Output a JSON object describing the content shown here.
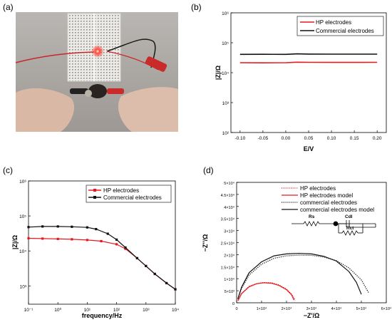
{
  "panel_labels": [
    "(a)",
    "(b)",
    "(c)",
    "(d)"
  ],
  "chart_data": [
    {
      "panel": "(b)",
      "type": "line",
      "title": "",
      "xlabel": "E/V",
      "ylabel": "|Z|/Ω",
      "x_ticks": [
        "-0.10",
        "-0.05",
        "0.00",
        "0.05",
        "0.10",
        "0.15",
        "0.20"
      ],
      "y_ticks": [
        "10²",
        "10³",
        "10⁴",
        "10⁵",
        "10⁶"
      ],
      "xlim": [
        -0.12,
        0.22
      ],
      "ylim": [
        100,
        1000000
      ],
      "y_scale": "log",
      "grid": false,
      "legend": "top-right",
      "series": [
        {
          "name": "HP electrodes",
          "color": "#e8191e",
          "x": [
            -0.1,
            -0.05,
            0.0,
            0.025,
            0.05,
            0.1,
            0.15,
            0.2
          ],
          "y": [
            21500,
            21300,
            21600,
            22400,
            22100,
            22000,
            22000,
            22200
          ]
        },
        {
          "name": "Commercial electrodes",
          "color": "#111111",
          "x": [
            -0.1,
            -0.05,
            0.0,
            0.025,
            0.05,
            0.1,
            0.15,
            0.2
          ],
          "y": [
            41000,
            41200,
            41000,
            42500,
            41800,
            41500,
            41600,
            41500
          ]
        }
      ]
    },
    {
      "panel": "(c)",
      "type": "line",
      "title": "",
      "xlabel": "frequency/Hz",
      "ylabel": "|Z|/Ω",
      "x_ticks": [
        "10⁻¹",
        "10⁰",
        "10¹",
        "10²",
        "10³",
        "10⁴"
      ],
      "y_ticks": [
        "10³",
        "10⁴",
        "10⁵",
        "10⁶"
      ],
      "xlim": [
        0.1,
        10000
      ],
      "ylim": [
        300,
        1000000
      ],
      "x_scale": "log",
      "y_scale": "log",
      "grid": false,
      "legend": "top-right",
      "series": [
        {
          "name": "HP electrodes",
          "color": "#e8191e",
          "x": [
            0.1,
            0.3,
            1,
            3,
            10,
            30,
            100,
            200,
            500,
            1000,
            2000,
            5000,
            10000
          ],
          "y": [
            23000,
            22500,
            22000,
            21500,
            20500,
            19000,
            15500,
            11500,
            6200,
            3700,
            2200,
            1200,
            800
          ]
        },
        {
          "name": "Commercial electrodes",
          "color": "#111111",
          "x": [
            0.1,
            0.3,
            1,
            3,
            10,
            20,
            50,
            100,
            200,
            500,
            1000,
            2000,
            5000,
            10000
          ],
          "y": [
            48000,
            50000,
            50000,
            49000,
            47000,
            42000,
            31000,
            21000,
            12500,
            6200,
            3700,
            2200,
            1200,
            800
          ]
        }
      ]
    },
    {
      "panel": "(d)",
      "type": "line",
      "title": "",
      "xlabel": "−Z'/Ω",
      "ylabel": "−Z''/Ω",
      "x_ticks": [
        "0",
        "1×10⁴",
        "2×10⁴",
        "3×10⁴",
        "4×10⁴",
        "5×10⁴",
        "6×10⁴"
      ],
      "y_ticks": [
        "0",
        "5×10³",
        "1×10⁴",
        "1.5×10⁴",
        "2×10⁴",
        "2.5×10⁴",
        "3×10⁴",
        "3.5×10⁴",
        "4×10⁴",
        "4.5×10⁴",
        "5×10⁴"
      ],
      "xlim": [
        0,
        60000
      ],
      "ylim": [
        0,
        50000
      ],
      "grid": false,
      "legend": "top-left",
      "circuit_labels": [
        "Rs",
        "Cdl",
        "Rct"
      ],
      "series": [
        {
          "name": "HP electrodes",
          "color": "#e8191e",
          "style": "dotted",
          "x": [
            500,
            2000,
            5000,
            8000,
            11000,
            14000,
            17000,
            20000,
            22000,
            23500
          ],
          "y": [
            1000,
            4000,
            6800,
            8000,
            8400,
            8300,
            7400,
            5700,
            3700,
            1000
          ]
        },
        {
          "name": "HP electrodes model",
          "color": "#e8191e",
          "style": "solid",
          "x": [
            500,
            2000,
            5000,
            8000,
            11000,
            14000,
            17000,
            20000,
            22000,
            23000
          ],
          "y": [
            800,
            3800,
            6600,
            7900,
            8300,
            8100,
            7200,
            5400,
            3300,
            1100
          ]
        },
        {
          "name": "commercial electrodes",
          "color": "#111111",
          "style": "dotted",
          "x": [
            500,
            2000,
            5000,
            10000,
            15000,
            20000,
            25000,
            30000,
            35000,
            40000,
            45000,
            50000,
            53000
          ],
          "y": [
            1500,
            6000,
            11500,
            16000,
            18500,
            19500,
            19800,
            19700,
            19000,
            17500,
            14500,
            9500,
            4000
          ]
        },
        {
          "name": "commercial electrodes model",
          "color": "#111111",
          "style": "solid",
          "x": [
            500,
            2000,
            5000,
            10000,
            15000,
            20000,
            25000,
            30000,
            35000,
            40000,
            45000,
            48000,
            50000
          ],
          "y": [
            1800,
            6500,
            12500,
            17000,
            19500,
            20300,
            20500,
            20300,
            19300,
            17300,
            13000,
            8500,
            3500
          ]
        }
      ]
    }
  ]
}
